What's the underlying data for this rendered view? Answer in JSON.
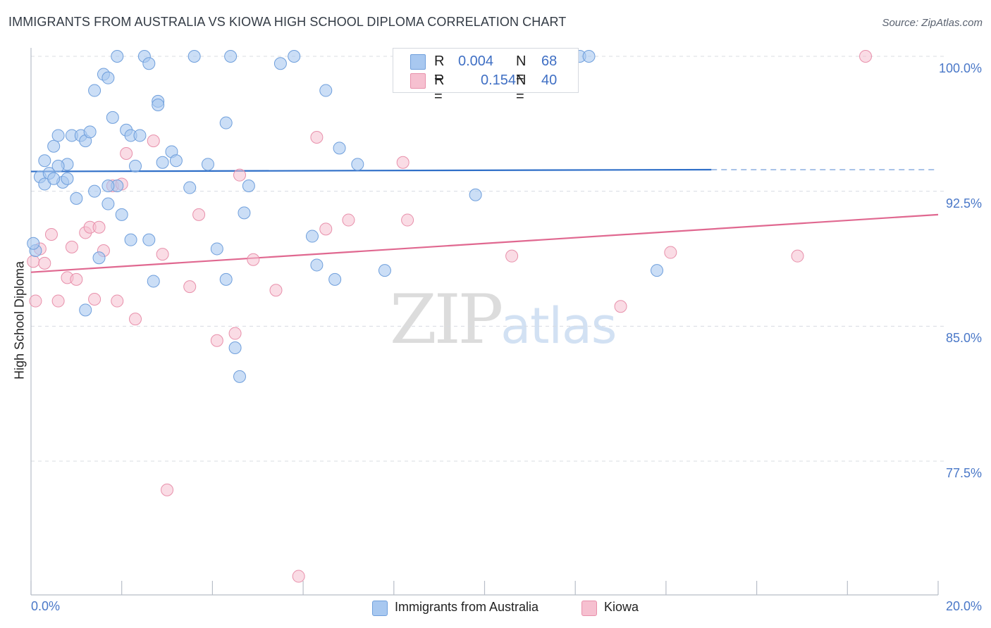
{
  "header": {
    "title": "IMMIGRANTS FROM AUSTRALIA VS KIOWA HIGH SCHOOL DIPLOMA CORRELATION CHART",
    "source": "Source: ZipAtlas.com"
  },
  "watermark": {
    "part1": "ZIP",
    "part2": "atlas"
  },
  "colors": {
    "blue_fill": "#a8c8f0",
    "blue_stroke": "#6f9fdc",
    "blue_line": "#2f6fc8",
    "pink_fill": "#f6c0d0",
    "pink_stroke": "#e890ab",
    "pink_line": "#e06890",
    "axis_text": "#4a78c8",
    "grid": "#d8dce2"
  },
  "legend": {
    "rows": [
      {
        "r_label": "R =",
        "r_value": "0.004",
        "n_label": "N =",
        "n_value": "68"
      },
      {
        "r_label": "R =",
        "r_value": "0.154",
        "n_label": "N =",
        "n_value": "40"
      }
    ]
  },
  "bottom_legend": {
    "items": [
      {
        "label": "Immigrants from Australia"
      },
      {
        "label": "Kiowa"
      }
    ]
  },
  "axes": {
    "ylabel": "High School Diploma",
    "x_min_label": "0.0%",
    "x_max_label": "20.0%",
    "y_tick_labels": [
      "100.0%",
      "92.5%",
      "85.0%",
      "77.5%"
    ]
  },
  "chart_data": {
    "type": "scatter",
    "title": "IMMIGRANTS FROM AUSTRALIA VS KIOWA HIGH SCHOOL DIPLOMA CORRELATION CHART",
    "xlabel": "",
    "ylabel": "High School Diploma",
    "xlim": [
      0,
      20
    ],
    "ylim": [
      70.0,
      101.3
    ],
    "y_ticks": [
      100.0,
      92.5,
      85.0,
      77.5
    ],
    "grid": "horizontal-dashed",
    "legend_position": "top-center",
    "series": [
      {
        "name": "Immigrants from Australia",
        "color": "#a8c8f0",
        "R": 0.004,
        "N": 68,
        "trend": {
          "x": [
            0,
            15
          ],
          "y": [
            93.6,
            93.7
          ],
          "dashed_extension_to_x": 20
        },
        "points": [
          [
            0.1,
            89.2
          ],
          [
            0.2,
            93.3
          ],
          [
            0.3,
            94.2
          ],
          [
            0.4,
            93.5
          ],
          [
            0.5,
            95.0
          ],
          [
            0.6,
            95.6
          ],
          [
            0.7,
            93.0
          ],
          [
            0.8,
            94.0
          ],
          [
            0.9,
            95.6
          ],
          [
            1.0,
            92.1
          ],
          [
            1.1,
            95.6
          ],
          [
            1.2,
            95.3
          ],
          [
            1.3,
            95.8
          ],
          [
            1.4,
            92.5
          ],
          [
            1.5,
            88.8
          ],
          [
            1.6,
            99.0
          ],
          [
            1.7,
            91.8
          ],
          [
            1.8,
            96.6
          ],
          [
            1.9,
            92.8
          ],
          [
            2.1,
            95.9
          ],
          [
            2.2,
            95.6
          ],
          [
            2.3,
            93.9
          ],
          [
            2.4,
            95.6
          ],
          [
            2.5,
            100.0
          ],
          [
            2.6,
            89.8
          ],
          [
            2.7,
            87.5
          ],
          [
            2.8,
            97.5
          ],
          [
            2.9,
            94.1
          ],
          [
            3.1,
            94.7
          ],
          [
            3.5,
            92.7
          ],
          [
            3.6,
            100.0
          ],
          [
            3.9,
            94.0
          ],
          [
            4.1,
            89.3
          ],
          [
            4.3,
            96.3
          ],
          [
            4.4,
            100.0
          ],
          [
            4.5,
            83.8
          ],
          [
            4.6,
            82.2
          ],
          [
            4.7,
            91.3
          ],
          [
            4.8,
            92.8
          ],
          [
            5.5,
            99.6
          ],
          [
            5.8,
            100.0
          ],
          [
            6.2,
            90.0
          ],
          [
            6.3,
            88.4
          ],
          [
            6.5,
            98.1
          ],
          [
            6.7,
            87.6
          ],
          [
            6.8,
            94.9
          ],
          [
            7.2,
            94.0
          ],
          [
            7.8,
            88.1
          ],
          [
            9.8,
            92.3
          ],
          [
            12.1,
            100.0
          ],
          [
            12.3,
            100.0
          ],
          [
            13.8,
            88.1
          ],
          [
            0.05,
            89.6
          ],
          [
            0.3,
            92.9
          ],
          [
            0.8,
            93.2
          ],
          [
            1.2,
            85.9
          ],
          [
            1.4,
            98.1
          ],
          [
            1.7,
            98.8
          ],
          [
            2.0,
            91.2
          ],
          [
            2.2,
            89.8
          ],
          [
            2.6,
            99.6
          ],
          [
            2.8,
            97.3
          ],
          [
            0.6,
            93.9
          ],
          [
            4.3,
            87.6
          ],
          [
            1.7,
            92.8
          ],
          [
            1.9,
            100.0
          ],
          [
            3.2,
            94.2
          ],
          [
            0.5,
            93.2
          ]
        ]
      },
      {
        "name": "Kiowa",
        "color": "#f6c0d0",
        "R": 0.154,
        "N": 40,
        "trend": {
          "x": [
            0,
            20
          ],
          "y": [
            88.0,
            91.2
          ]
        },
        "points": [
          [
            0.05,
            88.6
          ],
          [
            0.1,
            86.4
          ],
          [
            0.2,
            89.3
          ],
          [
            0.3,
            88.5
          ],
          [
            0.45,
            90.1
          ],
          [
            0.6,
            86.4
          ],
          [
            0.8,
            87.7
          ],
          [
            0.9,
            89.4
          ],
          [
            1.0,
            87.6
          ],
          [
            1.2,
            90.2
          ],
          [
            1.3,
            90.5
          ],
          [
            1.4,
            86.5
          ],
          [
            1.5,
            90.5
          ],
          [
            1.6,
            89.2
          ],
          [
            1.8,
            92.8
          ],
          [
            1.9,
            86.4
          ],
          [
            2.0,
            92.9
          ],
          [
            2.1,
            94.6
          ],
          [
            2.3,
            85.4
          ],
          [
            2.7,
            95.3
          ],
          [
            2.9,
            89.0
          ],
          [
            3.0,
            75.9
          ],
          [
            3.5,
            87.2
          ],
          [
            3.7,
            91.2
          ],
          [
            4.1,
            84.2
          ],
          [
            4.5,
            84.6
          ],
          [
            4.6,
            93.4
          ],
          [
            4.9,
            88.7
          ],
          [
            5.4,
            87.0
          ],
          [
            5.9,
            71.1
          ],
          [
            6.3,
            95.5
          ],
          [
            6.5,
            90.4
          ],
          [
            7.0,
            90.9
          ],
          [
            8.2,
            94.1
          ],
          [
            8.3,
            90.9
          ],
          [
            10.6,
            88.9
          ],
          [
            13.0,
            86.1
          ],
          [
            14.1,
            89.1
          ],
          [
            16.9,
            88.9
          ],
          [
            18.4,
            100.0
          ]
        ]
      }
    ]
  }
}
